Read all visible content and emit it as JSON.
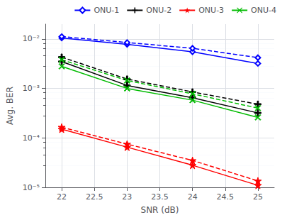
{
  "chart_data": {
    "type": "line",
    "xlabel": "SNR (dB)",
    "ylabel": "Avg. BER",
    "x": [
      22,
      23,
      24,
      25
    ],
    "series": [
      {
        "name": "ONU-1",
        "color": "#0000FF",
        "marker": "diamond",
        "line_style": "solid",
        "values": [
          0.0105,
          0.0078,
          0.0055,
          0.0032
        ]
      },
      {
        "color": "#0000FF",
        "marker": "diamond",
        "line_style": "dashed",
        "values": [
          0.0112,
          0.0085,
          0.0065,
          0.0042
        ]
      },
      {
        "name": "ONU-2",
        "color": "#000000",
        "marker": "plus",
        "line_style": "solid",
        "values": [
          0.0035,
          0.00115,
          0.00065,
          0.00032
        ]
      },
      {
        "color": "#000000",
        "marker": "plus",
        "line_style": "dashed",
        "values": [
          0.0043,
          0.00155,
          0.00085,
          0.00048
        ]
      },
      {
        "name": "ONU-3",
        "color": "#FF0000",
        "marker": "star",
        "line_style": "solid",
        "values": [
          0.00015,
          6.5e-05,
          2.8e-05,
          1.1e-05
        ]
      },
      {
        "color": "#FF0000",
        "marker": "star",
        "line_style": "dashed",
        "values": [
          0.000165,
          7.5e-05,
          3.5e-05,
          1.35e-05
        ]
      },
      {
        "name": "ONU-4",
        "color": "#00BB00",
        "marker": "x",
        "line_style": "solid",
        "values": [
          0.0028,
          0.001,
          0.00058,
          0.00026
        ]
      },
      {
        "color": "#00BB00",
        "marker": "x",
        "line_style": "dashed",
        "values": [
          0.0038,
          0.00145,
          0.00078,
          0.0004
        ]
      }
    ],
    "xlim": [
      21.75,
      25.25
    ],
    "xticks": [
      22,
      22.5,
      23,
      23.5,
      24,
      24.5,
      25
    ],
    "ylim": [
      1e-05,
      0.02
    ],
    "yticks": [
      {
        "value": 1e-05,
        "label": "10⁻⁵"
      },
      {
        "value": 0.0001,
        "label": "10⁻⁴"
      },
      {
        "value": 0.001,
        "label": "10⁻³"
      },
      {
        "value": 0.01,
        "label": "10⁻²"
      }
    ],
    "log": "y",
    "grid": true,
    "legend": "upper right"
  }
}
